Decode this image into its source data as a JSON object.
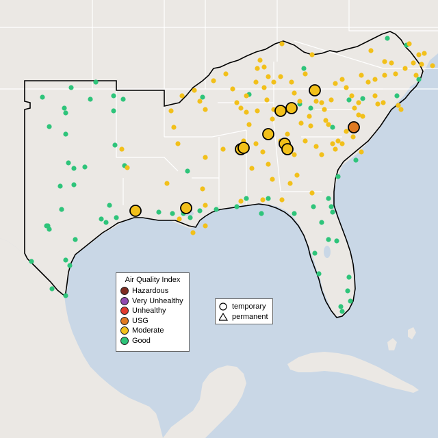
{
  "legend": {
    "title": "Air Quality Index",
    "items": [
      {
        "label": "Hazardous",
        "color": "#7e2d22"
      },
      {
        "label": "Very Unhealthy",
        "color": "#8f4bb0"
      },
      {
        "label": "Unhealthy",
        "color": "#e23b2f"
      },
      {
        "label": "USG",
        "color": "#e07a22"
      },
      {
        "label": "Moderate",
        "color": "#f2c01a"
      },
      {
        "label": "Good",
        "color": "#2ec47a"
      }
    ]
  },
  "shape_legend": {
    "items": [
      {
        "label": "temporary",
        "icon": "circle-icon"
      },
      {
        "label": "permanent",
        "icon": "triangle-icon"
      }
    ]
  },
  "colors": {
    "water": "#c9d7e6",
    "land": "#ebe8e4",
    "border": "#ffffff",
    "region_outline": "#000000",
    "good": "#2ec47a",
    "moderate": "#f2c01a",
    "usg": "#e07a22"
  }
}
